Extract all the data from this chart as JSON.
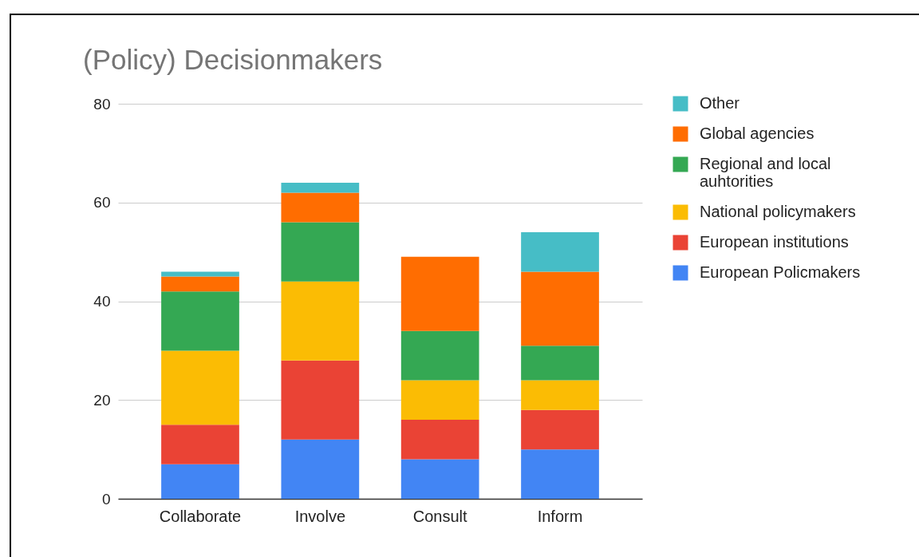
{
  "chart_data": {
    "type": "bar",
    "title": "(Policy) Decisionmakers",
    "categories": [
      "Collaborate",
      "Involve",
      "Consult",
      "Inform"
    ],
    "stacked": true,
    "series": [
      {
        "name": "European Policmakers",
        "color": "#4285f4",
        "values": [
          7,
          12,
          8,
          10
        ]
      },
      {
        "name": "European institutions",
        "color": "#ea4335",
        "values": [
          8,
          16,
          8,
          8
        ]
      },
      {
        "name": "National policymakers",
        "color": "#fbbc04",
        "values": [
          15,
          16,
          8,
          6
        ]
      },
      {
        "name": "Regional and local auhtorities",
        "color": "#34a853",
        "values": [
          12,
          12,
          10,
          7
        ]
      },
      {
        "name": "Global agencies",
        "color": "#ff6d01",
        "values": [
          3,
          6,
          15,
          15
        ]
      },
      {
        "name": "Other",
        "color": "#46bdc6",
        "values": [
          1,
          2,
          null,
          8
        ]
      }
    ],
    "ylim": [
      0,
      80
    ],
    "yticks": [
      0,
      20,
      40,
      60,
      80
    ],
    "grid": "y",
    "legend": "right"
  }
}
